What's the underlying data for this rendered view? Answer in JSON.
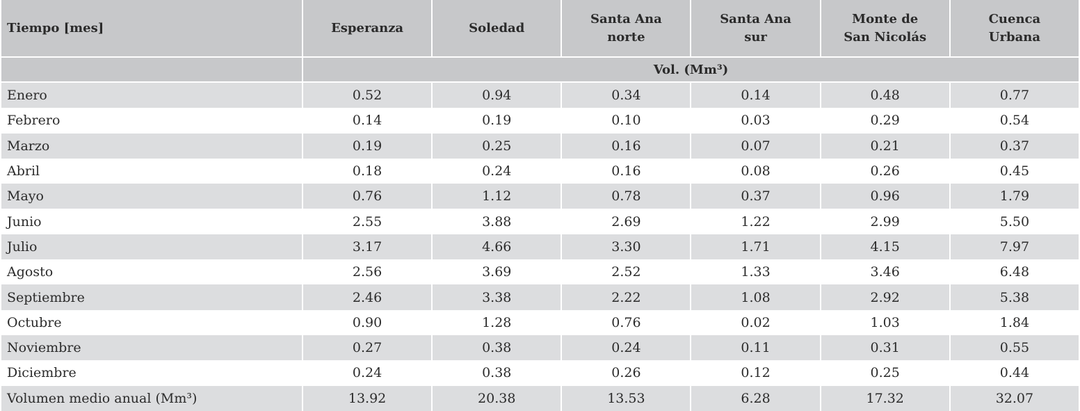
{
  "table": {
    "header": [
      "Tiempo [mes]",
      "Esperanza",
      "Soledad",
      "Santa Ana norte",
      "Santa Ana sur",
      "Monte de San Nicolás",
      "Cuenca Urbana"
    ],
    "unit": "Vol. (Mm³)",
    "rows": [
      [
        "Enero",
        "0.52",
        "0.94",
        "0.34",
        "0.14",
        "0.48",
        "0.77"
      ],
      [
        "Febrero",
        "0.14",
        "0.19",
        "0.10",
        "0.03",
        "0.29",
        "0.54"
      ],
      [
        "Marzo",
        "0.19",
        "0.25",
        "0.16",
        "0.07",
        "0.21",
        "0.37"
      ],
      [
        "Abril",
        "0.18",
        "0.24",
        "0.16",
        "0.08",
        "0.26",
        "0.45"
      ],
      [
        "Mayo",
        "0.76",
        "1.12",
        "0.78",
        "0.37",
        "0.96",
        "1.79"
      ],
      [
        "Junio",
        "2.55",
        "3.88",
        "2.69",
        "1.22",
        "2.99",
        "5.50"
      ],
      [
        "Julio",
        "3.17",
        "4.66",
        "3.30",
        "1.71",
        "4.15",
        "7.97"
      ],
      [
        "Agosto",
        "2.56",
        "3.69",
        "2.52",
        "1.33",
        "3.46",
        "6.48"
      ],
      [
        "Septiembre",
        "2.46",
        "3.38",
        "2.22",
        "1.08",
        "2.92",
        "5.38"
      ],
      [
        "Octubre",
        "0.90",
        "1.28",
        "0.76",
        "0.02",
        "1.03",
        "1.84"
      ],
      [
        "Noviembre",
        "0.27",
        "0.38",
        "0.24",
        "0.11",
        "0.31",
        "0.55"
      ],
      [
        "Diciembre",
        "0.24",
        "0.38",
        "0.26",
        "0.12",
        "0.25",
        "0.44"
      ],
      [
        "Volumen medio anual (Mm³)",
        "13.92",
        "20.38",
        "13.53",
        "6.28",
        "17.32",
        "32.07"
      ]
    ]
  }
}
